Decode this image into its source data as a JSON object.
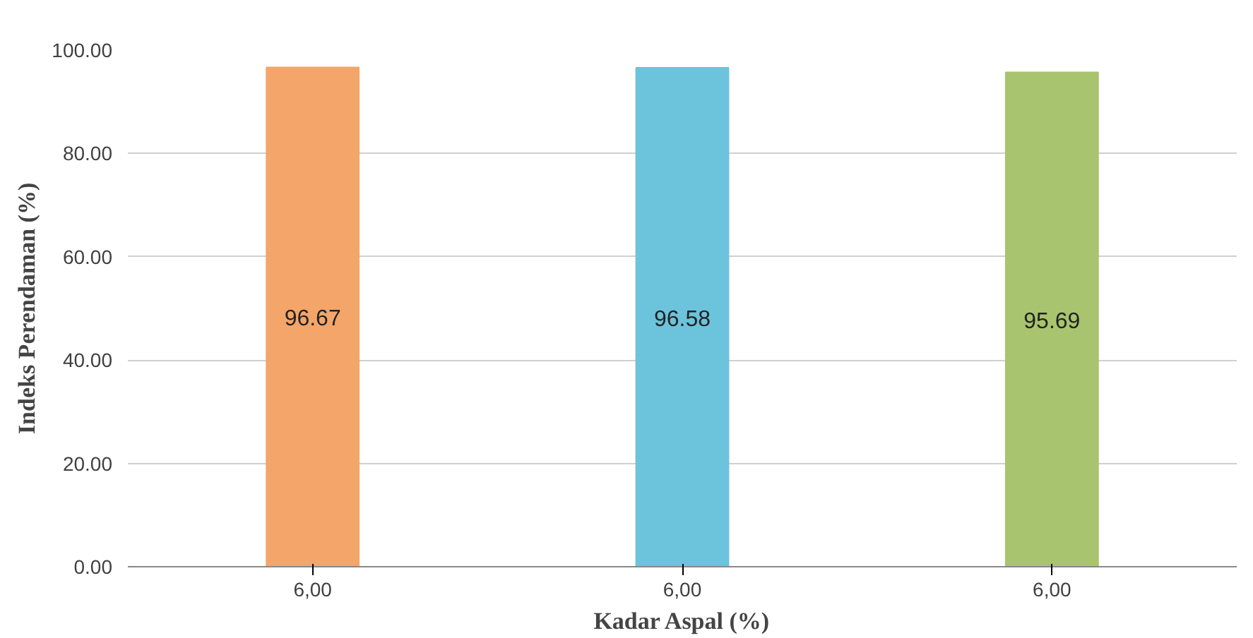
{
  "chart_data": {
    "type": "bar",
    "xlabel": "Kadar Aspal (%)",
    "ylabel": "Indeks Perendaman (%)",
    "categories": [
      "6,00",
      "6,00",
      "6,00"
    ],
    "values": [
      96.67,
      96.58,
      95.69
    ],
    "colors": [
      "#f4a66a",
      "#6cc3dc",
      "#a9c46e"
    ],
    "data_labels": true,
    "ylim": [
      0,
      100
    ],
    "yticks": [
      {
        "value": 0,
        "label": "0.00"
      },
      {
        "value": 20,
        "label": "20.00"
      },
      {
        "value": 40,
        "label": "40.00"
      },
      {
        "value": 60,
        "label": "60.00"
      },
      {
        "value": 80,
        "label": "80.00"
      },
      {
        "value": 100,
        "label": "100.00"
      }
    ],
    "grid": "y"
  }
}
